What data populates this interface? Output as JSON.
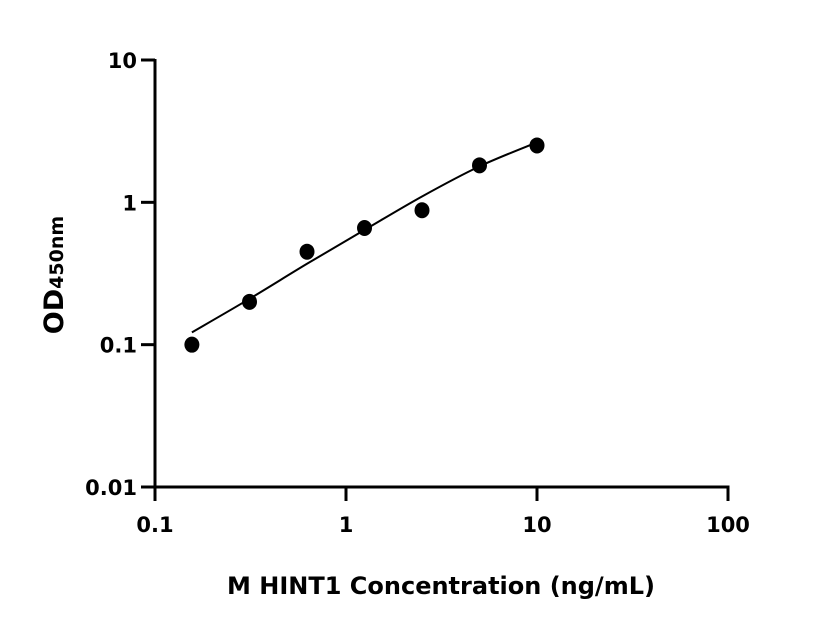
{
  "chart_data": {
    "type": "scatter",
    "title": "",
    "xlabel": "M HINT1 Concentration (ng/mL)",
    "ylabel": "OD",
    "ylabel_subscript": "450nm",
    "xscale": "log",
    "yscale": "log",
    "xlim": [
      0.1,
      100
    ],
    "ylim": [
      0.01,
      10
    ],
    "xticks": [
      "0.1",
      "1",
      "10",
      "100"
    ],
    "yticks": [
      "0.01",
      "0.1",
      "1",
      "10"
    ],
    "grid": false,
    "series": [
      {
        "x": [
          0.156,
          0.3125,
          0.625,
          1.25,
          2.5,
          5,
          10
        ],
        "y": [
          0.1,
          0.2,
          0.45,
          0.66,
          0.88,
          1.82,
          2.51
        ],
        "marker": "circle",
        "color": "#000000"
      }
    ],
    "fit_curve": {
      "x": [
        0.156,
        0.3125,
        0.625,
        1.25,
        2.5,
        5,
        10
      ],
      "y": [
        0.122,
        0.21,
        0.37,
        0.64,
        1.1,
        1.79,
        2.64
      ],
      "color": "#000000"
    }
  }
}
